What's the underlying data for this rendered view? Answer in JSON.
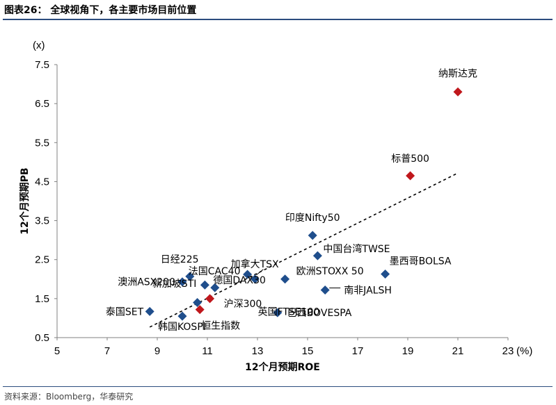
{
  "header": {
    "title": "图表26：  全球视角下，各主要市场目前位置"
  },
  "footer": {
    "source": "资料来源：Bloomberg，华泰研究"
  },
  "chart_data": {
    "type": "scatter",
    "xlabel": "12个月预期ROE",
    "ylabel": "12个月预期PB",
    "x_unit": "(%)",
    "y_unit": "(x)",
    "xlim": [
      5,
      23
    ],
    "ylim": [
      0.5,
      7.5
    ],
    "x_ticks": [
      "5",
      "7",
      "9",
      "11",
      "13",
      "15",
      "17",
      "19",
      "21",
      "23"
    ],
    "y_ticks": [
      "0.5",
      "1.5",
      "2.5",
      "3.5",
      "4.5",
      "5.5",
      "6.5",
      "7.5"
    ],
    "grid": false,
    "trendline": {
      "style": "dashed",
      "from": [
        8.7,
        0.77
      ],
      "to": [
        21.0,
        4.72
      ]
    },
    "colors": {
      "blue": "#1f4e8c",
      "red": "#c0171c",
      "axis": "#808080"
    },
    "points": [
      {
        "name": "纳斯达克",
        "x": 21.0,
        "y": 6.8,
        "color": "red"
      },
      {
        "name": "标普500",
        "x": 19.1,
        "y": 4.65,
        "color": "red"
      },
      {
        "name": "沪深300",
        "x": 11.1,
        "y": 1.5,
        "color": "red"
      },
      {
        "name": "恒生指数",
        "x": 10.7,
        "y": 1.22,
        "color": "red"
      },
      {
        "name": "印度Nifty50",
        "x": 15.2,
        "y": 3.12,
        "color": "blue"
      },
      {
        "name": "中国台湾TWSE",
        "x": 15.4,
        "y": 2.6,
        "color": "blue"
      },
      {
        "name": "墨西哥BOLSA",
        "x": 18.1,
        "y": 2.13,
        "color": "blue"
      },
      {
        "name": "加拿大TSX",
        "x": 12.6,
        "y": 2.12,
        "color": "blue"
      },
      {
        "name": "欧洲STOXX 50",
        "x": 14.1,
        "y": 2.0,
        "color": "blue"
      },
      {
        "name": "德国DAX30",
        "x": 12.9,
        "y": 2.0,
        "color": "blue"
      },
      {
        "name": "法国CAC40",
        "x": 11.3,
        "y": 1.78,
        "color": "blue"
      },
      {
        "name": "日经225",
        "x": 10.3,
        "y": 2.07,
        "color": "blue"
      },
      {
        "name": "澳洲ASX200",
        "x": 10.0,
        "y": 1.93,
        "color": "blue"
      },
      {
        "name": "新加坡STI",
        "x": 10.9,
        "y": 1.85,
        "color": "blue"
      },
      {
        "name": "英国FTSE100",
        "x": 10.6,
        "y": 1.4,
        "color": "blue"
      },
      {
        "name": "南非JALSH",
        "x": 15.7,
        "y": 1.72,
        "color": "blue"
      },
      {
        "name": "巴西BOVESPA",
        "x": 13.8,
        "y": 1.14,
        "color": "blue"
      },
      {
        "name": "泰国SET",
        "x": 8.7,
        "y": 1.17,
        "color": "blue"
      },
      {
        "name": "韩国KOSPI",
        "x": 10.0,
        "y": 1.05,
        "color": "blue"
      }
    ]
  }
}
